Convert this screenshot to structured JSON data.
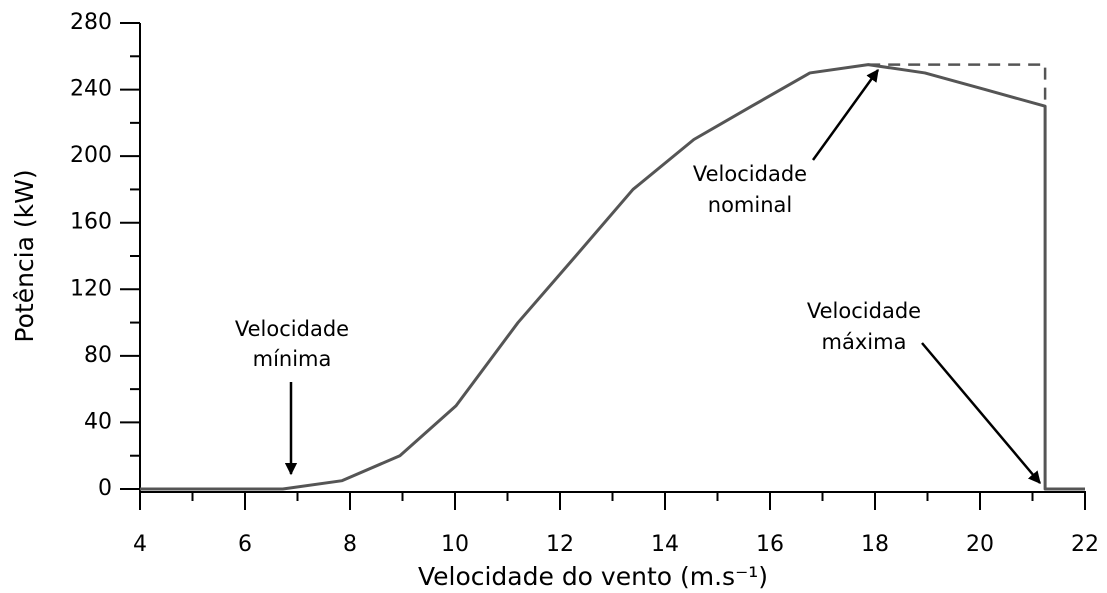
{
  "chart_data": {
    "type": "line",
    "x_label": "Velocidade do vento (m.s⁻¹)",
    "y_label": "Potência (kW)",
    "xlim": [
      4,
      22
    ],
    "ylim": [
      0,
      280
    ],
    "xticks": [
      4,
      6,
      8,
      10,
      12,
      14,
      16,
      18,
      20,
      22
    ],
    "yticks": [
      0,
      40,
      80,
      120,
      160,
      200,
      240,
      280
    ],
    "minor_xticks": [
      5,
      7,
      9,
      11,
      13,
      15,
      17,
      19,
      21
    ],
    "minor_yticks": [
      20,
      60,
      100,
      140,
      180,
      220,
      260
    ],
    "series": [
      {
        "color": "#555555",
        "dash": false,
        "x": [
          4,
          6.72,
          7.85,
          8.95,
          10.02,
          11.2,
          12.3,
          13.39,
          14.55,
          15.65,
          16.76,
          17.87,
          18.95,
          20.1,
          21.24,
          21.24,
          22
        ],
        "values": [
          0,
          0,
          5,
          20,
          50,
          100,
          140,
          180,
          210,
          230,
          250,
          255,
          250,
          240,
          230,
          0,
          0
        ]
      },
      {
        "color": "#555555",
        "dash": true,
        "x": [
          17.87,
          21.24,
          21.24
        ],
        "values": [
          255,
          255,
          230
        ]
      }
    ],
    "annotations": [
      {
        "lines": [
          "Velocidade",
          "mínima"
        ]
      },
      {
        "lines": [
          "Velocidade",
          "nominal"
        ]
      },
      {
        "lines": [
          "Velocidade",
          "máxima"
        ]
      }
    ]
  }
}
